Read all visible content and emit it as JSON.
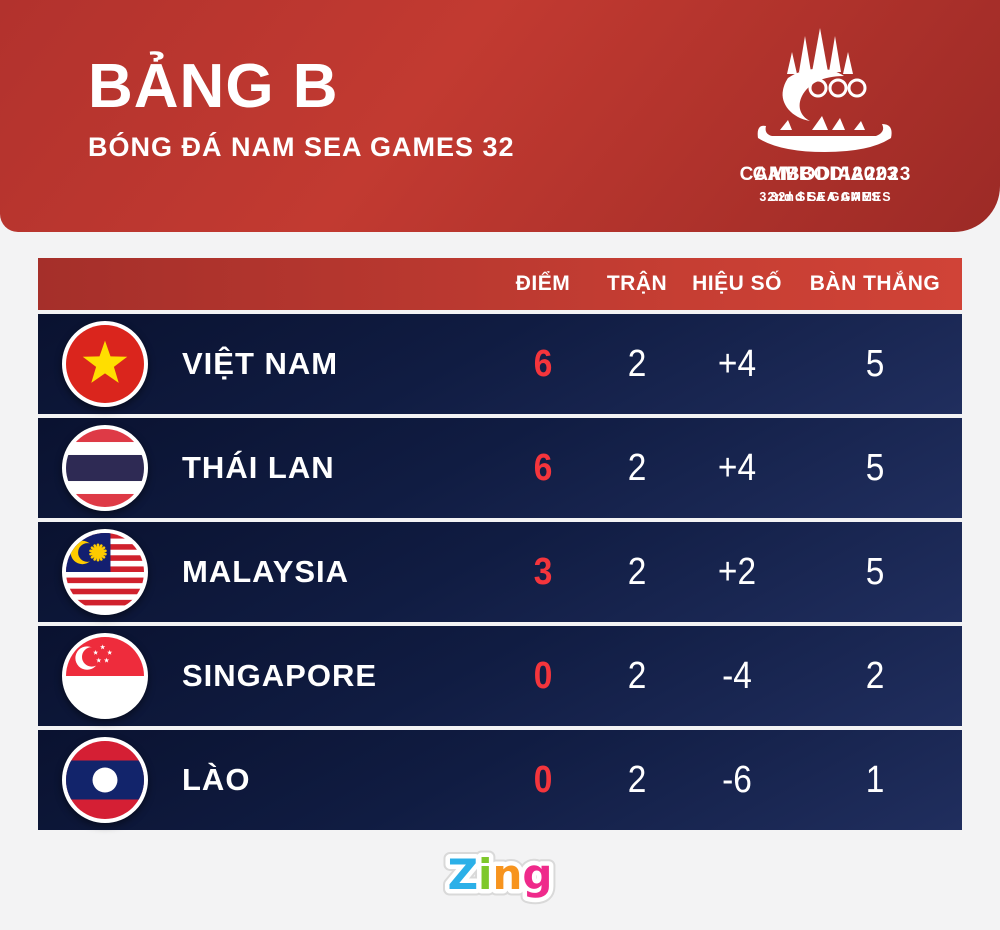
{
  "header": {
    "title": "BẢNG B",
    "subtitle": "BÓNG ĐÁ NAM SEA GAMES 32",
    "logo": {
      "line1": "CAMBODIA2023",
      "line2": "32nd SEA GAMES"
    }
  },
  "table": {
    "columns": [
      {
        "key": "points",
        "label": "ĐIỂM"
      },
      {
        "key": "matches",
        "label": "TRẬN"
      },
      {
        "key": "diff",
        "label": "HIỆU SỐ"
      },
      {
        "key": "goals",
        "label": "BÀN THẮNG"
      }
    ],
    "rows": [
      {
        "team": "VIỆT NAM",
        "flag": "vietnam-flag",
        "points": "6",
        "matches": "2",
        "diff": "+4",
        "goals": "5"
      },
      {
        "team": "THÁI LAN",
        "flag": "thailand-flag",
        "points": "6",
        "matches": "2",
        "diff": "+4",
        "goals": "5"
      },
      {
        "team": "MALAYSIA",
        "flag": "malaysia-flag",
        "points": "3",
        "matches": "2",
        "diff": "+2",
        "goals": "5"
      },
      {
        "team": "SINGAPORE",
        "flag": "singapore-flag",
        "points": "0",
        "matches": "2",
        "diff": "-4",
        "goals": "2"
      },
      {
        "team": "LÀO",
        "flag": "laos-flag",
        "points": "0",
        "matches": "2",
        "diff": "-6",
        "goals": "1"
      }
    ]
  },
  "footer": {
    "brand": "Zing",
    "brand_letters": [
      "Z",
      "i",
      "n",
      "g"
    ]
  },
  "colors": {
    "banner_red": "#b7342e",
    "table_header_red": "#c43c32",
    "row_navy_top": "#0a1230",
    "row_navy_bottom": "#202e5e",
    "points_red": "#f4353c",
    "page_bg": "#f3f3f4",
    "zing_z": "#2bb0e8",
    "zing_i": "#7ec82b",
    "zing_n": "#f7941e",
    "zing_g": "#ef2a8b"
  }
}
